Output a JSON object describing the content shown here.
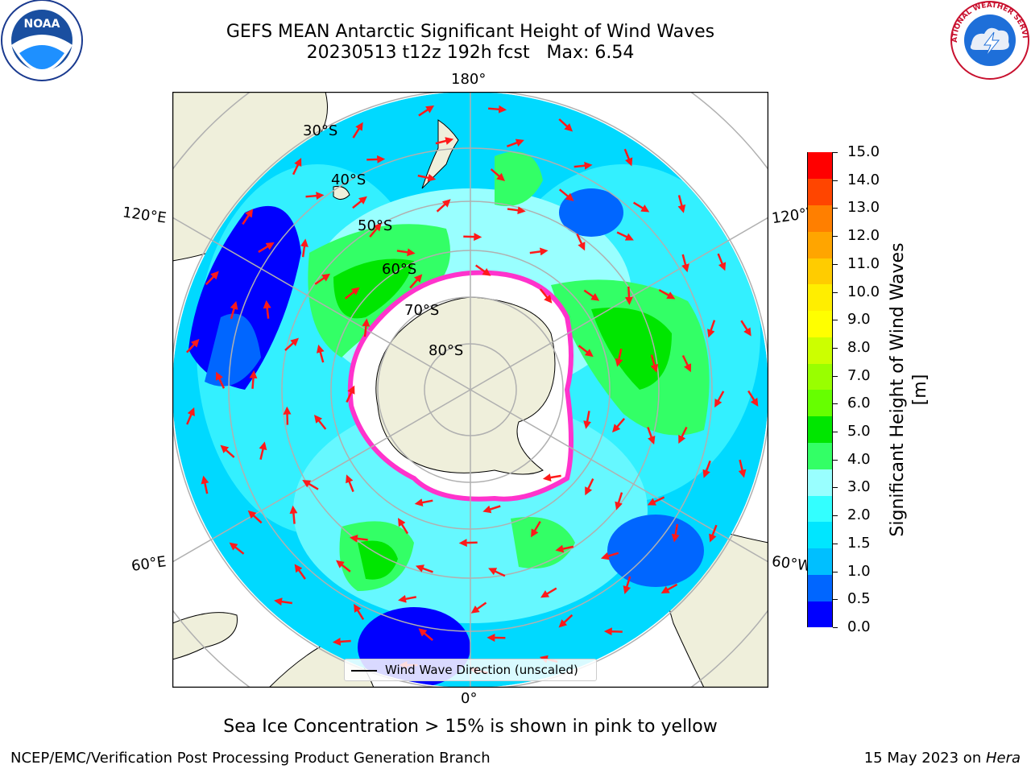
{
  "header": {
    "title": "GEFS MEAN Antarctic Significant Height of Wind Waves",
    "subtitle": "20230513 t12z 192h fcst   Max: 6.54"
  },
  "logos": {
    "left": "NOAA",
    "right": "NATIONAL WEATHER SERVICE"
  },
  "map": {
    "projection": "south-polar-stereographic",
    "lon_labels": {
      "top": "180°",
      "bottom": "0°",
      "upper_left": "120°E",
      "lower_left": "60°E",
      "upper_right": "120°W",
      "lower_right": "60°W"
    },
    "lat_labels": [
      "30°S",
      "40°S",
      "50°S",
      "60°S",
      "70°S",
      "80°S"
    ],
    "legend_label": "Wind Wave Direction (unscaled)",
    "colors": {
      "land": "#efefdb",
      "ice": "#ffffff",
      "ice_edge": "#ff33cc",
      "graticule": "#b0b0b0"
    }
  },
  "colorbar": {
    "label": "Significant Height of Wind Waves [m]",
    "ticks": [
      "0.0",
      "0.5",
      "1.0",
      "1.5",
      "2.0",
      "3.0",
      "4.0",
      "5.0",
      "6.0",
      "7.0",
      "8.0",
      "9.0",
      "10.0",
      "11.0",
      "12.0",
      "13.0",
      "14.0",
      "15.0"
    ],
    "colors": [
      "#0000ff",
      "#0066ff",
      "#00bfff",
      "#00e6ff",
      "#33ffff",
      "#99ffff",
      "#33ff66",
      "#00e600",
      "#66ff00",
      "#99ff00",
      "#ccff00",
      "#ffff00",
      "#ffee00",
      "#ffcc00",
      "#ffa500",
      "#ff7f00",
      "#ff4500",
      "#ff0000"
    ]
  },
  "notes": {
    "ice": "Sea Ice Concentration > 15% is shown in pink to yellow"
  },
  "footer": {
    "left": "NCEP/EMC/Verification Post Processing Product Generation Branch",
    "date": "15 May 2023 on ",
    "host": "Hera"
  }
}
